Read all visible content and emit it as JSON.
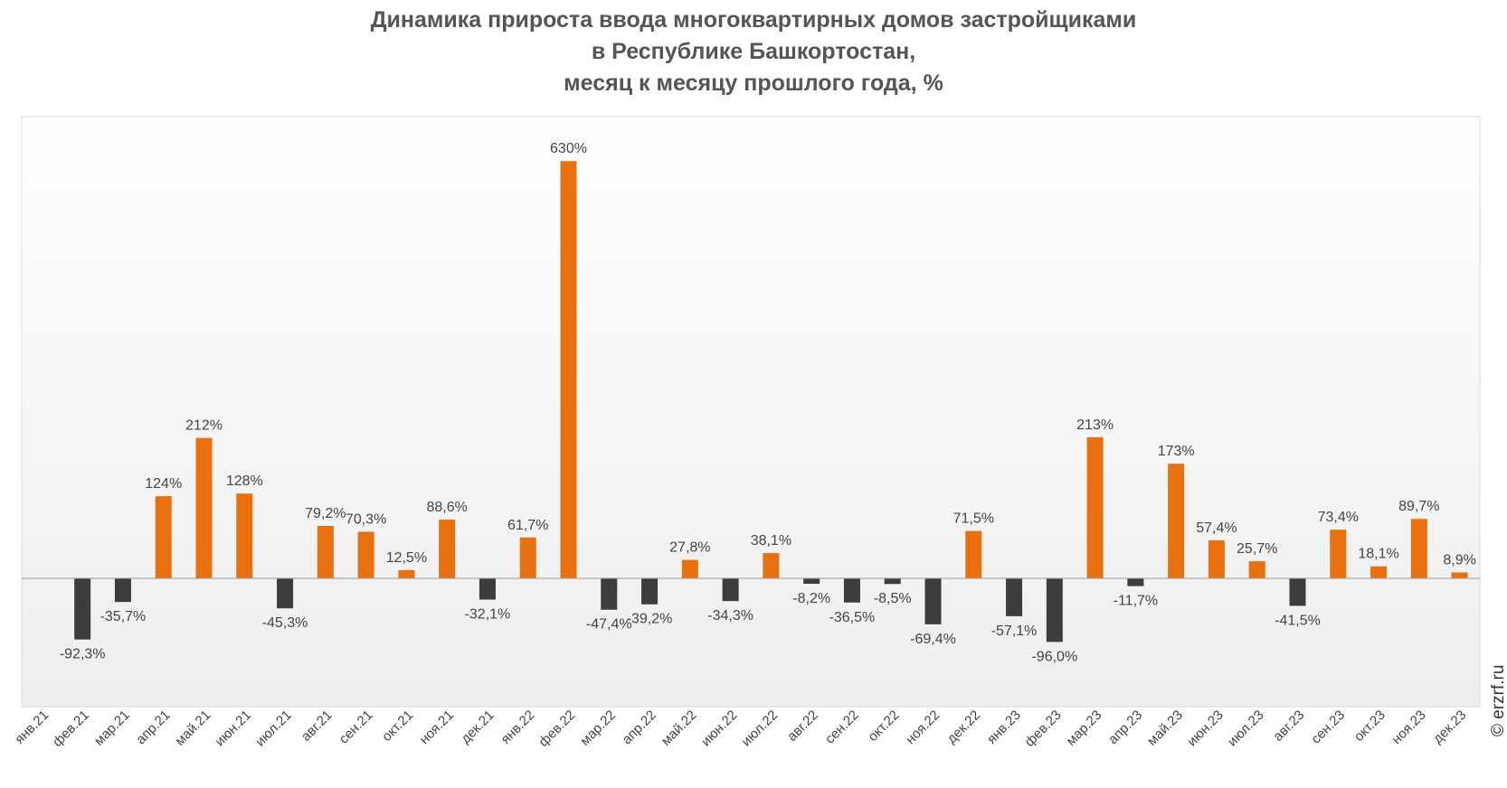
{
  "chart_data": {
    "type": "bar",
    "title_lines": [
      "Динамика прироста ввода многоквартирных домов застройщиками",
      "в Республике Башкортостан,",
      "месяц к месяцу прошлого года, %"
    ],
    "xlabel": "",
    "ylabel": "",
    "categories": [
      "янв.21",
      "фев.21",
      "мар.21",
      "апр.21",
      "май.21",
      "июн.21",
      "июл.21",
      "авг.21",
      "сен.21",
      "окт.21",
      "ноя.21",
      "дек.21",
      "янв.22",
      "фев.22",
      "мар.22",
      "апр.22",
      "май.22",
      "июн.22",
      "июл.22",
      "авг.22",
      "сен.22",
      "окт.22",
      "ноя.22",
      "дек.22",
      "янв.23",
      "фев.23",
      "мар.23",
      "апр.23",
      "май.23",
      "июн.23",
      "июл.23",
      "авг.23",
      "сен.23",
      "окт.23",
      "ноя.23",
      "дек.23"
    ],
    "values": [
      null,
      -92.3,
      -35.7,
      124,
      212,
      128,
      -45.3,
      79.2,
      70.3,
      12.5,
      88.6,
      -32.1,
      61.7,
      630,
      -47.4,
      -39.2,
      27.8,
      -34.3,
      38.1,
      -8.2,
      -36.5,
      -8.5,
      -69.4,
      71.5,
      -57.1,
      -96.0,
      213,
      -11.7,
      173,
      57.4,
      25.7,
      -41.5,
      73.4,
      18.1,
      89.7,
      8.9
    ],
    "labels": [
      "",
      "-92,3%",
      "-35,7%",
      "124%",
      "212%",
      "128%",
      "-45,3%",
      "79,2%",
      "70,3%",
      "12,5%",
      "88,6%",
      "-32,1%",
      "61,7%",
      "630%",
      "-47,4%",
      "-39,2%",
      "27,8%",
      "-34,3%",
      "38,1%",
      "-8,2%",
      "-36,5%",
      "-8,5%",
      "-69,4%",
      "71,5%",
      "-57,1%",
      "-96,0%",
      "213%",
      "-11,7%",
      "173%",
      "57,4%",
      "25,7%",
      "-41,5%",
      "73,4%",
      "18,1%",
      "89,7%",
      "8,9%"
    ],
    "ylim": [
      -200,
      700
    ],
    "grid": false,
    "legend": "none",
    "colors": {
      "positive": "#e8700e",
      "negative": "#3d3d3d",
      "axis": "#999999",
      "plot_border": "#d9d9d9"
    }
  },
  "watermark": "© erzrf.ru"
}
